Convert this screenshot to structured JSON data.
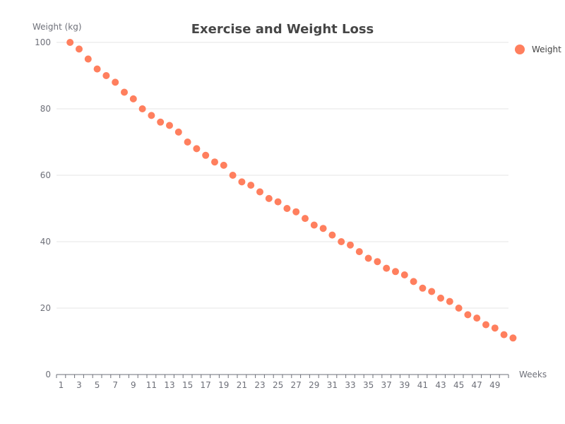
{
  "chart_data": {
    "type": "scatter",
    "title": "Exercise and Weight Loss",
    "xlabel": "Weeks",
    "ylabel": "Weight (kg)",
    "xlim": [
      0,
      50
    ],
    "ylim": [
      0,
      100
    ],
    "x_ticks": [
      1,
      3,
      5,
      7,
      9,
      11,
      13,
      15,
      17,
      19,
      21,
      23,
      25,
      27,
      29,
      31,
      33,
      35,
      37,
      39,
      41,
      43,
      45,
      47,
      49
    ],
    "y_ticks": [
      0,
      20,
      40,
      60,
      80,
      100
    ],
    "grid": true,
    "legend_position": "top-right",
    "series": [
      {
        "name": "Weight",
        "color": "#ff7f5e",
        "x": [
          1,
          2,
          3,
          4,
          5,
          6,
          7,
          8,
          9,
          10,
          11,
          12,
          13,
          14,
          15,
          16,
          17,
          18,
          19,
          20,
          21,
          22,
          23,
          24,
          25,
          26,
          27,
          28,
          29,
          30,
          31,
          32,
          33,
          34,
          35,
          36,
          37,
          38,
          39,
          40,
          41,
          42,
          43,
          44,
          45,
          46,
          47,
          48,
          49,
          50
        ],
        "y": [
          100,
          98,
          95,
          92,
          90,
          88,
          85,
          83,
          80,
          78,
          76,
          75,
          73,
          70,
          68,
          66,
          64,
          63,
          60,
          58,
          57,
          55,
          53,
          52,
          50,
          49,
          47,
          45,
          44,
          42,
          40,
          39,
          37,
          35,
          34,
          32,
          31,
          30,
          28,
          26,
          25,
          23,
          22,
          20,
          18,
          17,
          15,
          14,
          12,
          11
        ]
      }
    ]
  }
}
